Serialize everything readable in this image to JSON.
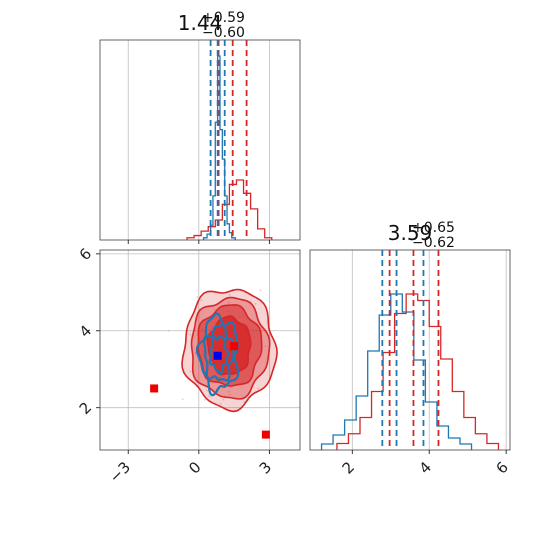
{
  "chart_data": {
    "type": "corner",
    "colors": {
      "series_a": "#d62728",
      "series_b": "#1f77b4",
      "marker_red": "#ee0000",
      "marker_blue": "#0000ee"
    },
    "parameters": [
      {
        "title": {
          "median": "1.44",
          "plus": "+0.59",
          "minus": "−0.60"
        },
        "range": [
          -4.2,
          4.3
        ],
        "ticks": [
          -3,
          0,
          3
        ],
        "tick_labels": [
          "−3",
          "0",
          "3"
        ],
        "red_quantiles": [
          0.84,
          1.44,
          2.03
        ],
        "blue_quantiles": [
          0.5,
          0.8,
          1.1
        ]
      },
      {
        "title": {
          "median": "3.59",
          "plus": "+0.65",
          "minus": "−0.62"
        },
        "range": [
          0.9,
          6.1
        ],
        "ticks": [
          2,
          4,
          6
        ],
        "tick_labels": [
          "2",
          "4",
          "6"
        ],
        "red_quantiles": [
          2.97,
          3.59,
          4.24
        ],
        "blue_quantiles": [
          2.78,
          3.15,
          3.85
        ]
      }
    ],
    "hist_x_red": {
      "bin_edges": [
        -0.5,
        -0.2,
        0.1,
        0.4,
        0.7,
        1.0,
        1.3,
        1.6,
        1.9,
        2.2,
        2.5,
        2.8,
        3.1
      ],
      "counts": [
        1,
        2,
        4,
        6,
        9,
        16,
        25,
        27,
        21,
        14,
        5,
        1
      ]
    },
    "hist_x_blue": {
      "bin_edges": [
        0.2,
        0.35,
        0.5,
        0.6,
        0.7,
        0.8,
        0.9,
        1.0,
        1.1,
        1.2,
        1.3,
        1.4,
        1.55
      ],
      "counts": [
        3,
        8,
        20,
        60,
        160,
        250,
        150,
        110,
        60,
        22,
        10,
        3
      ]
    },
    "hist_y_red": {
      "bin_edges": [
        1.6,
        1.9,
        2.2,
        2.5,
        2.8,
        3.1,
        3.4,
        3.7,
        4.0,
        4.3,
        4.6,
        4.9,
        5.2,
        5.5,
        5.8
      ],
      "counts": [
        2,
        5,
        10,
        18,
        30,
        42,
        48,
        46,
        38,
        28,
        18,
        10,
        5,
        2
      ]
    },
    "hist_y_blue": {
      "bin_edges": [
        1.2,
        1.5,
        1.8,
        2.1,
        2.4,
        2.7,
        3.0,
        3.3,
        3.6,
        3.9,
        4.2,
        4.5,
        4.8,
        5.1
      ],
      "counts": [
        2,
        5,
        10,
        18,
        33,
        45,
        52,
        46,
        30,
        16,
        8,
        4,
        2
      ]
    },
    "joint_red_contours": [
      {
        "level": 0.5,
        "center": [
          1.3,
          3.6
        ],
        "radii": [
          0.9,
          0.75
        ],
        "fill_opacity": 0.85
      },
      {
        "level": 1.0,
        "center": [
          1.3,
          3.6
        ],
        "radii": [
          1.35,
          1.05
        ],
        "fill_opacity": 0.55
      },
      {
        "level": 1.5,
        "center": [
          1.3,
          3.55
        ],
        "radii": [
          1.65,
          1.3
        ],
        "fill_opacity": 0.35
      },
      {
        "level": 2.0,
        "center": [
          1.3,
          3.55
        ],
        "radii": [
          1.95,
          1.55
        ],
        "fill_opacity": 0.2
      }
    ],
    "joint_blue_contours": [
      {
        "level": 0.5,
        "center": [
          0.85,
          3.4
        ],
        "radii": [
          0.35,
          0.45
        ]
      },
      {
        "level": 1.0,
        "center": [
          0.85,
          3.4
        ],
        "radii": [
          0.6,
          0.7
        ]
      },
      {
        "level": 1.5,
        "center": [
          0.85,
          3.4
        ],
        "radii": [
          0.8,
          0.95
        ]
      }
    ],
    "markers": [
      {
        "series": "red",
        "x": 1.5,
        "y": 3.6
      },
      {
        "series": "red",
        "x": -1.9,
        "y": 2.5
      },
      {
        "series": "red",
        "x": 2.85,
        "y": 1.3
      },
      {
        "series": "blue",
        "x": 0.8,
        "y": 3.35
      }
    ],
    "grid": true,
    "xlabel": "",
    "ylabel": ""
  }
}
